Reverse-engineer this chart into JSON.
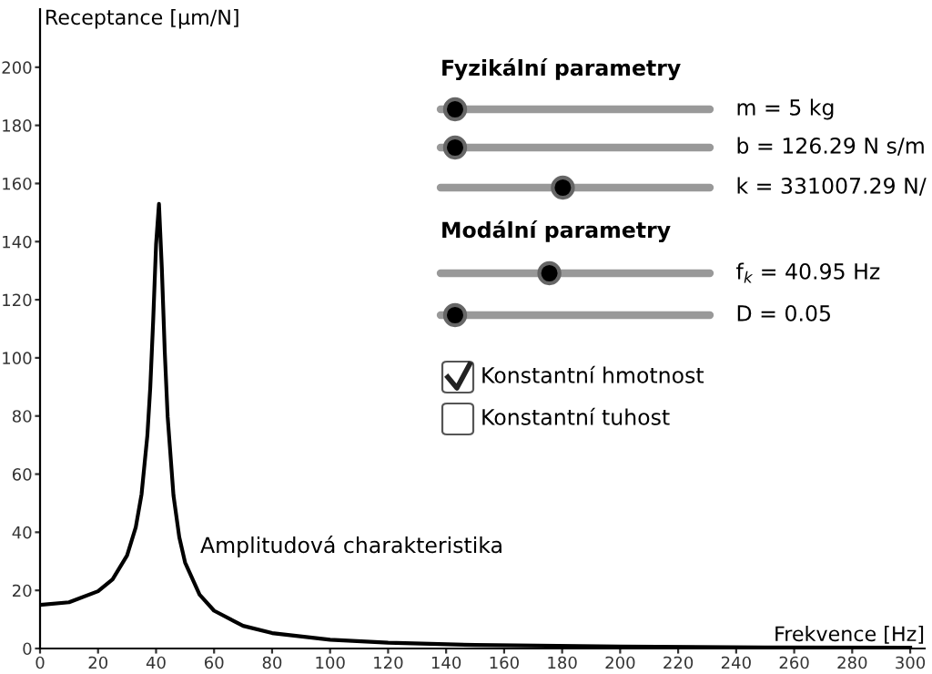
{
  "chart_data": {
    "type": "line",
    "xlabel": "Frekvence [Hz]",
    "ylabel": "Receptance [μm/N]",
    "x": [
      0,
      10,
      20,
      25,
      30,
      33,
      35,
      37,
      38,
      39,
      40,
      41,
      42,
      43,
      44,
      46,
      48,
      50,
      55,
      60,
      70,
      80,
      100,
      120,
      150,
      200,
      250,
      300
    ],
    "series": [
      {
        "color": "#000000",
        "values": [
          15,
          15.9,
          19.7,
          23.8,
          32,
          41.7,
          53.1,
          73.3,
          89.8,
          112.8,
          139,
          153,
          130.5,
          102,
          79.7,
          52.7,
          38.3,
          29.6,
          18.5,
          13,
          7.8,
          5.3,
          3,
          2,
          1.2,
          0.7,
          0.4,
          0.3
        ]
      }
    ],
    "xlim": [
      0,
      305
    ],
    "ylim": [
      0,
      220
    ],
    "xticks": [
      0,
      20,
      40,
      60,
      80,
      100,
      120,
      140,
      160,
      180,
      200,
      220,
      240,
      260,
      280,
      300
    ],
    "yticks": [
      0,
      20,
      40,
      60,
      80,
      100,
      120,
      140,
      160,
      180,
      200
    ],
    "grid": false,
    "legend": false,
    "marker": "none",
    "line_style": "solid",
    "annotations": [
      "Amplitudová charakteristika",
      "Fyzikální parametry",
      "m = 5 kg",
      "b = 126.29 N s/m",
      "k = 331007.29 N/",
      "Modální parametry",
      "f$_{k}$ = 40.95 Hz",
      "D = 0.05",
      "Konstantní hmotnost",
      "Konstantní tuhost"
    ]
  }
}
